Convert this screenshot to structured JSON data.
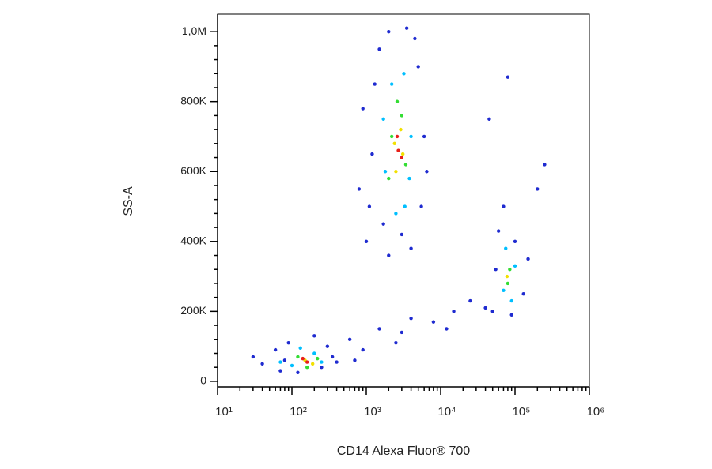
{
  "chart_data": {
    "type": "scatter",
    "x_label": "CD14 Alexa Fluor® 700",
    "y_label": "SS-A",
    "xscale": "log",
    "xlim": [
      10,
      1000000
    ],
    "xticks": [
      {
        "value": 10,
        "label": "10¹"
      },
      {
        "value": 100,
        "label": "10²"
      },
      {
        "value": 1000,
        "label": "10³"
      },
      {
        "value": 10000,
        "label": "10⁴"
      },
      {
        "value": 100000,
        "label": "10⁵"
      },
      {
        "value": 1000000,
        "label": "10⁶"
      }
    ],
    "ylim": [
      -16000,
      1050000
    ],
    "yticks": [
      0,
      {
        "value": 200000,
        "label": "200K"
      },
      {
        "value": 400000,
        "label": "400K"
      },
      {
        "value": 600000,
        "label": "600K"
      },
      {
        "value": 800000,
        "label": "800K"
      },
      {
        "value": 1000000,
        "label": "1,0M"
      }
    ],
    "series": [
      {
        "color": "#1f2bd0",
        "x": [
          40,
          60,
          70,
          90,
          250,
          300,
          350,
          30,
          200,
          120,
          80,
          400,
          600,
          900,
          1500,
          2500,
          4000,
          8000,
          15000,
          25000,
          40000,
          700,
          3000,
          12000,
          1100,
          1300,
          1500,
          2000,
          3500,
          5000,
          6000,
          5500,
          4000,
          2000,
          1200,
          900,
          800,
          6500,
          3000,
          1700,
          4500,
          1000,
          50000,
          60000,
          100000,
          130000,
          90000,
          55000,
          150000,
          200000,
          250000,
          80000,
          45000,
          70000
        ],
        "y": [
          50000,
          90000,
          30000,
          110000,
          40000,
          100000,
          70000,
          70000,
          130000,
          25000,
          60000,
          55000,
          120000,
          90000,
          150000,
          110000,
          180000,
          170000,
          200000,
          230000,
          210000,
          60000,
          140000,
          150000,
          500000,
          850000,
          950000,
          1000000,
          1010000,
          900000,
          700000,
          500000,
          380000,
          360000,
          650000,
          780000,
          550000,
          600000,
          420000,
          450000,
          980000,
          400000,
          200000,
          430000,
          400000,
          250000,
          190000,
          320000,
          350000,
          550000,
          620000,
          870000,
          750000,
          500000
        ]
      },
      {
        "color": "#00bfff",
        "x": [
          100,
          200,
          250,
          130,
          70,
          1800,
          3800,
          2200,
          3200,
          1700,
          4000,
          2500,
          3300,
          70000,
          100000,
          75000,
          90000
        ],
        "y": [
          45000,
          80000,
          55000,
          95000,
          55000,
          600000,
          580000,
          850000,
          880000,
          750000,
          700000,
          480000,
          500000,
          260000,
          330000,
          380000,
          230000
        ]
      },
      {
        "color": "#33dd33",
        "x": [
          120,
          220,
          160,
          2200,
          3000,
          2000,
          3400,
          2600,
          80000,
          85000
        ],
        "y": [
          70000,
          65000,
          40000,
          700000,
          760000,
          580000,
          620000,
          800000,
          280000,
          320000
        ]
      },
      {
        "color": "#f2e000",
        "x": [
          150,
          190,
          2400,
          2900,
          2500,
          3100,
          78000
        ],
        "y": [
          60000,
          50000,
          680000,
          720000,
          600000,
          650000,
          300000
        ]
      },
      {
        "color": "#e8201a",
        "x": [
          160,
          140,
          2700,
          2600,
          3000
        ],
        "y": [
          55000,
          65000,
          660000,
          700000,
          640000
        ]
      }
    ]
  }
}
